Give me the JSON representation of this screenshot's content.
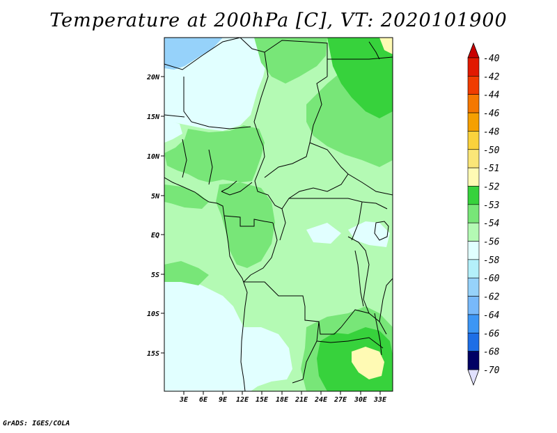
{
  "title": "Temperature at 200hPa [C], VT: 2020101900",
  "credit": "GrADS: IGES/COLA",
  "map": {
    "lat_ticks": [
      "20N",
      "15N",
      "10N",
      "5N",
      "EQ",
      "5S",
      "10S",
      "15S"
    ],
    "lon_ticks": [
      "3E",
      "6E",
      "9E",
      "12E",
      "15E",
      "18E",
      "21E",
      "24E",
      "27E",
      "30E",
      "33E"
    ]
  },
  "colorbar": {
    "levels": [
      {
        "label": "-40",
        "color": "#e11900"
      },
      {
        "label": "-42",
        "color": "#f03c00"
      },
      {
        "label": "-44",
        "color": "#f57800"
      },
      {
        "label": "-46",
        "color": "#f5a000"
      },
      {
        "label": "-48",
        "color": "#fad23c"
      },
      {
        "label": "-50",
        "color": "#fae678"
      },
      {
        "label": "-51",
        "color": "#fffab4"
      },
      {
        "label": "-52",
        "color": "#37d23c"
      },
      {
        "label": "-53",
        "color": "#78e678"
      },
      {
        "label": "-54",
        "color": "#b4fab4"
      },
      {
        "label": "-56",
        "color": "#e1ffff"
      },
      {
        "label": "-58",
        "color": "#b4f0fa"
      },
      {
        "label": "-60",
        "color": "#96d2fa"
      },
      {
        "label": "-62",
        "color": "#78b9fa"
      },
      {
        "label": "-64",
        "color": "#3c96f5"
      },
      {
        "label": "-66",
        "color": "#1e6ee6"
      },
      {
        "label": "-68",
        "color": "#1450d2"
      },
      {
        "label": "-70",
        "color": "#0a28a0"
      }
    ],
    "top_arrow_color": "#c80000",
    "bottom_arrow_color": "#e1e1ff",
    "bottom_fill_color": "#000064"
  }
}
